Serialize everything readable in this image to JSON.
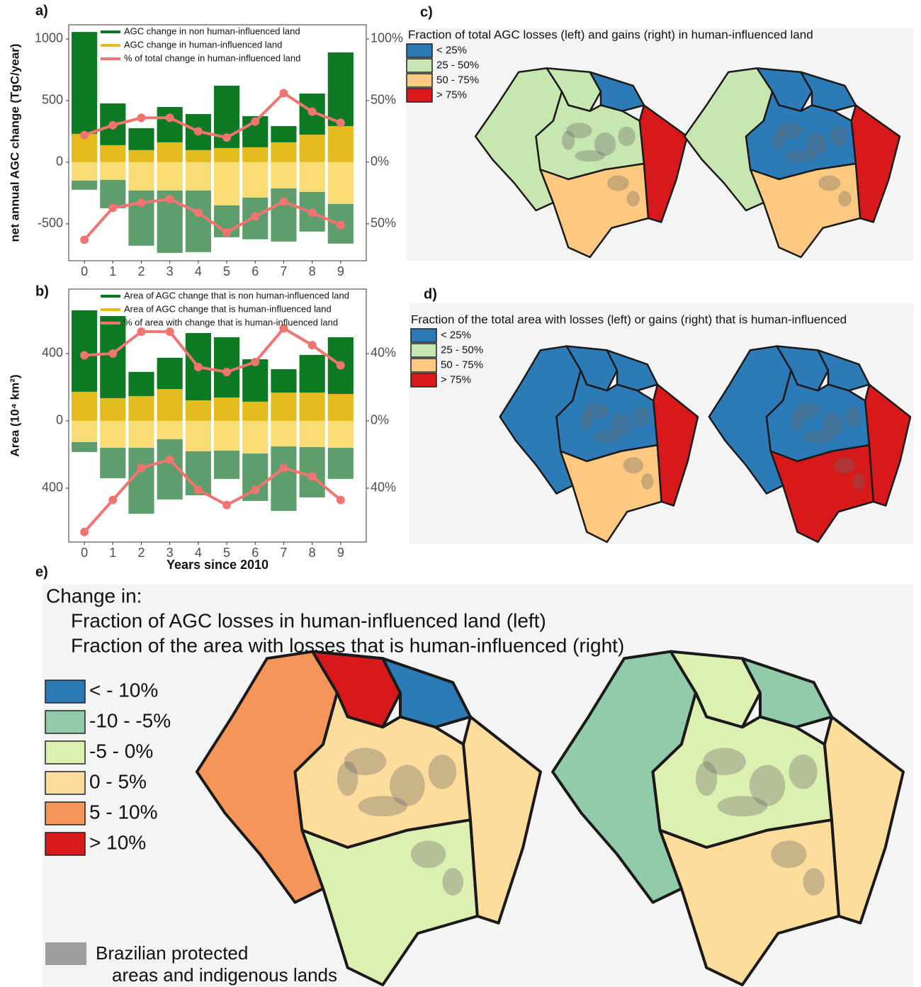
{
  "chart_data": [
    {
      "type": "bar",
      "panel_label": "a)",
      "ylabel": "net annual AGC change (TgC/year)",
      "categories": [
        "0",
        "1",
        "2",
        "3",
        "4",
        "5",
        "6",
        "7",
        "8",
        "9"
      ],
      "ylim": [
        -800,
        1115
      ],
      "yticks": [
        -500,
        0,
        500,
        1000
      ],
      "y2lim": [
        -80,
        111.5
      ],
      "y2ticks": [
        {
          "value": -50,
          "label": "50%"
        },
        {
          "value": 0,
          "label": "0%"
        },
        {
          "value": 50,
          "label": "50%"
        },
        {
          "value": 100,
          "label": "100%"
        }
      ],
      "series": [
        {
          "name": "AGC change in non human-influenced land",
          "color": "#0b7a23",
          "loss_color": "#5e9e6c",
          "values": [
            827,
            339,
            178,
            287,
            293,
            506,
            253,
            132,
            333,
            598
          ],
          "losses": [
            -75,
            -230,
            -448,
            -506,
            -500,
            -258,
            -339,
            -431,
            -322,
            -322
          ]
        },
        {
          "name": "AGC change in human-influenced land",
          "color": "#e4bc1e",
          "loss_color": "#f9dc75",
          "values": [
            230,
            138,
            98,
            161,
            98,
            115,
            121,
            161,
            224,
            293
          ],
          "losses": [
            -149,
            -144,
            -230,
            -230,
            -230,
            -351,
            -287,
            -213,
            -241,
            -339
          ]
        },
        {
          "name": "% of total change in human-influenced land",
          "type": "line",
          "axis": "y2",
          "color": "#f07470",
          "values": [
            22,
            30,
            36,
            36,
            25,
            20,
            33,
            56,
            41,
            32
          ],
          "losses": [
            -63,
            -37,
            -33,
            -30,
            -41,
            -57,
            -44,
            -32,
            -41,
            -51
          ]
        }
      ]
    },
    {
      "type": "bar",
      "panel_label": "b)",
      "ylabel": "Area (10⁴ km²)",
      "xlabel": "Years since 2010",
      "categories": [
        "0",
        "1",
        "2",
        "3",
        "4",
        "5",
        "6",
        "7",
        "8",
        "9"
      ],
      "ylim": [
        -720,
        783
      ],
      "yticks": [
        {
          "value": -400,
          "label": "400"
        },
        0,
        400
      ],
      "y2lim": [
        -72,
        78.3
      ],
      "y2ticks": [
        {
          "value": -40,
          "label": "40%"
        },
        {
          "value": 0,
          "label": "0%"
        },
        {
          "value": 40,
          "label": "40%"
        }
      ],
      "series": [
        {
          "name": "Area of AGC change that is non human-influenced land",
          "color": "#0b7a23",
          "loss_color": "#5e9e6c",
          "values": [
            484,
            488,
            144,
            186,
            400,
            358,
            252,
            139,
            224,
            337
          ],
          "losses": [
            -59,
            -181,
            -392,
            -358,
            -261,
            -168,
            -282,
            -383,
            -299,
            -185
          ]
        },
        {
          "name": "Area of AGC change that is human-influenced land",
          "color": "#e4bc1e",
          "loss_color": "#f9dc75",
          "values": [
            173,
            135,
            147,
            189,
            122,
            139,
            114,
            168,
            168,
            160
          ],
          "losses": [
            -126,
            -160,
            -160,
            -109,
            -181,
            -177,
            -194,
            -152,
            -156,
            -160
          ]
        },
        {
          "name": "% of area with change that is human-influenced land",
          "type": "line",
          "axis": "y2",
          "color": "#f07470",
          "values": [
            39,
            40,
            53,
            53,
            32,
            29,
            35,
            55,
            45,
            33
          ],
          "losses": [
            -66,
            -47,
            -28,
            -23,
            -41,
            -50,
            -41,
            -28,
            -33,
            -47
          ]
        }
      ]
    }
  ],
  "maps": [
    {
      "panel_label": "c)",
      "title": "Fraction of total AGC losses (left) and gains (right) in human-influenced land",
      "legend": [
        {
          "label": "< 25%",
          "color": "#2c7bb6"
        },
        {
          "label": "25 - 50%",
          "color": "#c8e6b0"
        },
        {
          "label": "50 - 75%",
          "color": "#fdc980"
        },
        {
          "label": "> 75%",
          "color": "#d7191c"
        }
      ]
    },
    {
      "panel_label": "d)",
      "title": "Fraction of the total area with losses (left) or gains (right) that is human-influenced",
      "legend": [
        {
          "label": "< 25%",
          "color": "#2c7bb6"
        },
        {
          "label": "25 - 50%",
          "color": "#c8e6b0"
        },
        {
          "label": "50 - 75%",
          "color": "#fdc980"
        },
        {
          "label": "> 75%",
          "color": "#d7191c"
        }
      ]
    },
    {
      "panel_label": "e)",
      "title_lines": [
        "Change in:",
        "Fraction of AGC losses in human-influenced land (left)",
        "Fraction of the area with losses that is human-influenced (right)"
      ],
      "legend": [
        {
          "label": "< - 10%",
          "color": "#2c7bb6"
        },
        {
          "label": "-10 - -5%",
          "color": "#92cba9"
        },
        {
          "label": "-5 - 0%",
          "color": "#ddf0b2"
        },
        {
          "label": "0 - 5%",
          "color": "#fddc9c"
        },
        {
          "label": "5 - 10%",
          "color": "#f4955a"
        },
        {
          "label": "> 10%",
          "color": "#d7191c"
        }
      ],
      "note_color": "#9e9e9e",
      "note_lines": [
        "Brazilian protected",
        "areas and indigenous lands"
      ]
    }
  ]
}
